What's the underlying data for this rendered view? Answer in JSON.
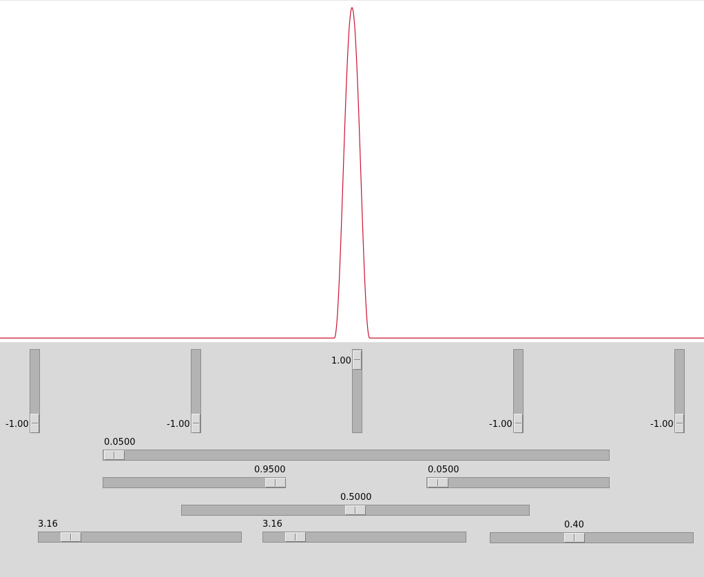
{
  "plot": {
    "line_color": "#c8102e",
    "peak_position": 0.5,
    "peak_width": 0.05
  },
  "vertical_sliders": [
    {
      "name": "vslider-1",
      "value_label": "-1.00",
      "value": -1.0
    },
    {
      "name": "vslider-2",
      "value_label": "-1.00",
      "value": -1.0
    },
    {
      "name": "vslider-3",
      "value_label": "1.00",
      "value": 1.0
    },
    {
      "name": "vslider-4",
      "value_label": "-1.00",
      "value": -1.0
    },
    {
      "name": "vslider-5",
      "value_label": "-1.00",
      "value": -1.0
    }
  ],
  "horizontal_sliders": [
    {
      "name": "hslider-row1",
      "value_label": "0.0500",
      "value": 0.05
    },
    {
      "name": "hslider-row2-left",
      "value_label": "0.9500",
      "value": 0.95
    },
    {
      "name": "hslider-row2-right",
      "value_label": "0.0500",
      "value": 0.05
    },
    {
      "name": "hslider-row3",
      "value_label": "0.5000",
      "value": 0.5
    },
    {
      "name": "hslider-row4-left",
      "value_label": "3.16",
      "value": 3.16
    },
    {
      "name": "hslider-row4-middle",
      "value_label": "3.16",
      "value": 3.16
    },
    {
      "name": "hslider-row4-right",
      "value_label": "0.40",
      "value": 0.4
    }
  ]
}
